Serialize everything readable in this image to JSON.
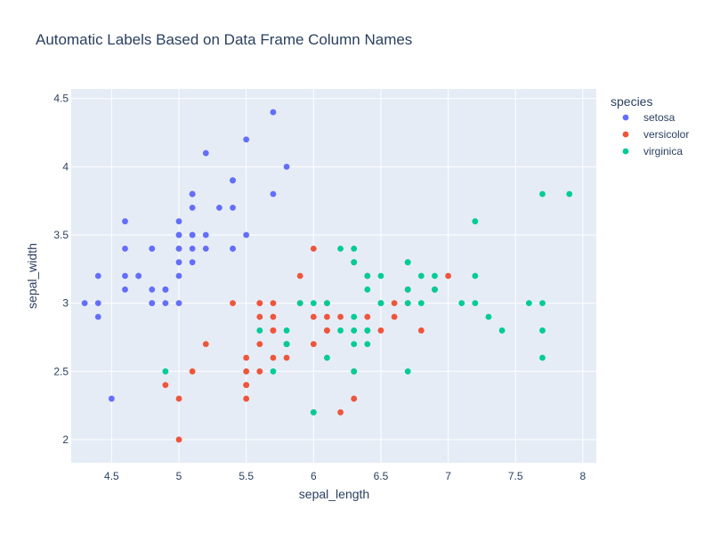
{
  "chart_data": {
    "type": "scatter",
    "title": "Automatic Labels Based on Data Frame Column Names",
    "xlabel": "sepal_length",
    "ylabel": "sepal_width",
    "xlim": [
      4.2,
      8.1
    ],
    "ylim": [
      1.83,
      4.57
    ],
    "x_ticks": [
      4.5,
      5,
      5.5,
      6,
      6.5,
      7,
      7.5,
      8
    ],
    "x_tick_labels": [
      "4.5",
      "5",
      "5.5",
      "6",
      "6.5",
      "7",
      "7.5",
      "8"
    ],
    "y_ticks": [
      2,
      2.5,
      3,
      3.5,
      4,
      4.5
    ],
    "y_tick_labels": [
      "2",
      "2.5",
      "3",
      "3.5",
      "4",
      "4.5"
    ],
    "grid": true,
    "legend": {
      "title": "species",
      "placement": "top-right outside"
    },
    "colors": {
      "plot_bg": "#e5ecf6",
      "grid": "#ffffff",
      "text": "#2a3f5f"
    },
    "series": [
      {
        "name": "setosa",
        "color": "#636efa",
        "points": [
          [
            5.1,
            3.5
          ],
          [
            4.9,
            3.0
          ],
          [
            4.7,
            3.2
          ],
          [
            4.6,
            3.1
          ],
          [
            5.0,
            3.6
          ],
          [
            5.4,
            3.9
          ],
          [
            4.6,
            3.4
          ],
          [
            5.0,
            3.4
          ],
          [
            4.4,
            2.9
          ],
          [
            4.9,
            3.1
          ],
          [
            5.4,
            3.7
          ],
          [
            4.8,
            3.4
          ],
          [
            4.8,
            3.0
          ],
          [
            4.3,
            3.0
          ],
          [
            5.8,
            4.0
          ],
          [
            5.7,
            4.4
          ],
          [
            5.4,
            3.9
          ],
          [
            5.1,
            3.5
          ],
          [
            5.7,
            3.8
          ],
          [
            5.1,
            3.8
          ],
          [
            5.4,
            3.4
          ],
          [
            5.1,
            3.7
          ],
          [
            4.6,
            3.6
          ],
          [
            5.1,
            3.3
          ],
          [
            4.8,
            3.4
          ],
          [
            5.0,
            3.0
          ],
          [
            5.0,
            3.4
          ],
          [
            5.2,
            3.5
          ],
          [
            5.2,
            3.4
          ],
          [
            4.7,
            3.2
          ],
          [
            4.8,
            3.1
          ],
          [
            5.4,
            3.4
          ],
          [
            5.2,
            4.1
          ],
          [
            5.5,
            4.2
          ],
          [
            4.9,
            3.1
          ],
          [
            5.0,
            3.2
          ],
          [
            5.5,
            3.5
          ],
          [
            4.9,
            3.1
          ],
          [
            4.4,
            3.0
          ],
          [
            5.1,
            3.4
          ],
          [
            5.0,
            3.5
          ],
          [
            4.5,
            2.3
          ],
          [
            4.4,
            3.2
          ],
          [
            5.0,
            3.5
          ],
          [
            5.1,
            3.8
          ],
          [
            4.8,
            3.0
          ],
          [
            5.1,
            3.8
          ],
          [
            4.6,
            3.2
          ],
          [
            5.3,
            3.7
          ],
          [
            5.0,
            3.3
          ]
        ]
      },
      {
        "name": "versicolor",
        "color": "#ef553b",
        "points": [
          [
            7.0,
            3.2
          ],
          [
            6.4,
            3.2
          ],
          [
            6.9,
            3.1
          ],
          [
            5.5,
            2.3
          ],
          [
            6.5,
            2.8
          ],
          [
            5.7,
            2.8
          ],
          [
            6.3,
            3.3
          ],
          [
            4.9,
            2.4
          ],
          [
            6.6,
            2.9
          ],
          [
            5.2,
            2.7
          ],
          [
            5.0,
            2.0
          ],
          [
            5.9,
            3.0
          ],
          [
            6.0,
            2.2
          ],
          [
            6.1,
            2.9
          ],
          [
            5.6,
            2.9
          ],
          [
            6.7,
            3.1
          ],
          [
            5.6,
            3.0
          ],
          [
            5.8,
            2.7
          ],
          [
            6.2,
            2.2
          ],
          [
            5.6,
            2.5
          ],
          [
            5.9,
            3.2
          ],
          [
            6.1,
            2.8
          ],
          [
            6.3,
            2.5
          ],
          [
            6.1,
            2.8
          ],
          [
            6.4,
            2.9
          ],
          [
            6.6,
            3.0
          ],
          [
            6.8,
            2.8
          ],
          [
            6.7,
            3.0
          ],
          [
            6.0,
            2.9
          ],
          [
            5.7,
            2.6
          ],
          [
            5.5,
            2.4
          ],
          [
            5.5,
            2.4
          ],
          [
            5.8,
            2.7
          ],
          [
            6.0,
            2.7
          ],
          [
            5.4,
            3.0
          ],
          [
            6.0,
            3.4
          ],
          [
            6.7,
            3.1
          ],
          [
            6.3,
            2.3
          ],
          [
            5.6,
            3.0
          ],
          [
            5.5,
            2.5
          ],
          [
            5.5,
            2.6
          ],
          [
            6.1,
            3.0
          ],
          [
            5.8,
            2.6
          ],
          [
            5.0,
            2.3
          ],
          [
            5.6,
            2.7
          ],
          [
            5.7,
            3.0
          ],
          [
            5.7,
            2.9
          ],
          [
            6.2,
            2.9
          ],
          [
            5.1,
            2.5
          ],
          [
            5.7,
            2.8
          ]
        ]
      },
      {
        "name": "virginica",
        "color": "#00cc96",
        "points": [
          [
            6.3,
            3.3
          ],
          [
            5.8,
            2.7
          ],
          [
            7.1,
            3.0
          ],
          [
            6.3,
            2.9
          ],
          [
            6.5,
            3.0
          ],
          [
            7.6,
            3.0
          ],
          [
            4.9,
            2.5
          ],
          [
            7.3,
            2.9
          ],
          [
            6.7,
            2.5
          ],
          [
            7.2,
            3.6
          ],
          [
            6.5,
            3.2
          ],
          [
            6.4,
            2.7
          ],
          [
            6.8,
            3.0
          ],
          [
            5.7,
            2.5
          ],
          [
            5.8,
            2.8
          ],
          [
            6.4,
            3.2
          ],
          [
            6.5,
            3.0
          ],
          [
            7.7,
            3.8
          ],
          [
            7.7,
            2.6
          ],
          [
            6.0,
            2.2
          ],
          [
            6.9,
            3.2
          ],
          [
            5.6,
            2.8
          ],
          [
            7.7,
            2.8
          ],
          [
            6.3,
            2.7
          ],
          [
            6.7,
            3.3
          ],
          [
            7.2,
            3.2
          ],
          [
            6.2,
            2.8
          ],
          [
            6.1,
            3.0
          ],
          [
            6.4,
            2.8
          ],
          [
            7.2,
            3.0
          ],
          [
            7.4,
            2.8
          ],
          [
            7.9,
            3.8
          ],
          [
            6.4,
            2.8
          ],
          [
            6.3,
            2.8
          ],
          [
            6.1,
            2.6
          ],
          [
            7.7,
            3.0
          ],
          [
            6.3,
            3.4
          ],
          [
            6.4,
            3.1
          ],
          [
            6.0,
            3.0
          ],
          [
            6.9,
            3.1
          ],
          [
            6.7,
            3.1
          ],
          [
            6.9,
            3.1
          ],
          [
            5.8,
            2.7
          ],
          [
            6.8,
            3.2
          ],
          [
            6.7,
            3.3
          ],
          [
            6.7,
            3.0
          ],
          [
            6.3,
            2.5
          ],
          [
            6.5,
            3.0
          ],
          [
            6.2,
            3.4
          ],
          [
            5.9,
            3.0
          ]
        ]
      }
    ]
  }
}
